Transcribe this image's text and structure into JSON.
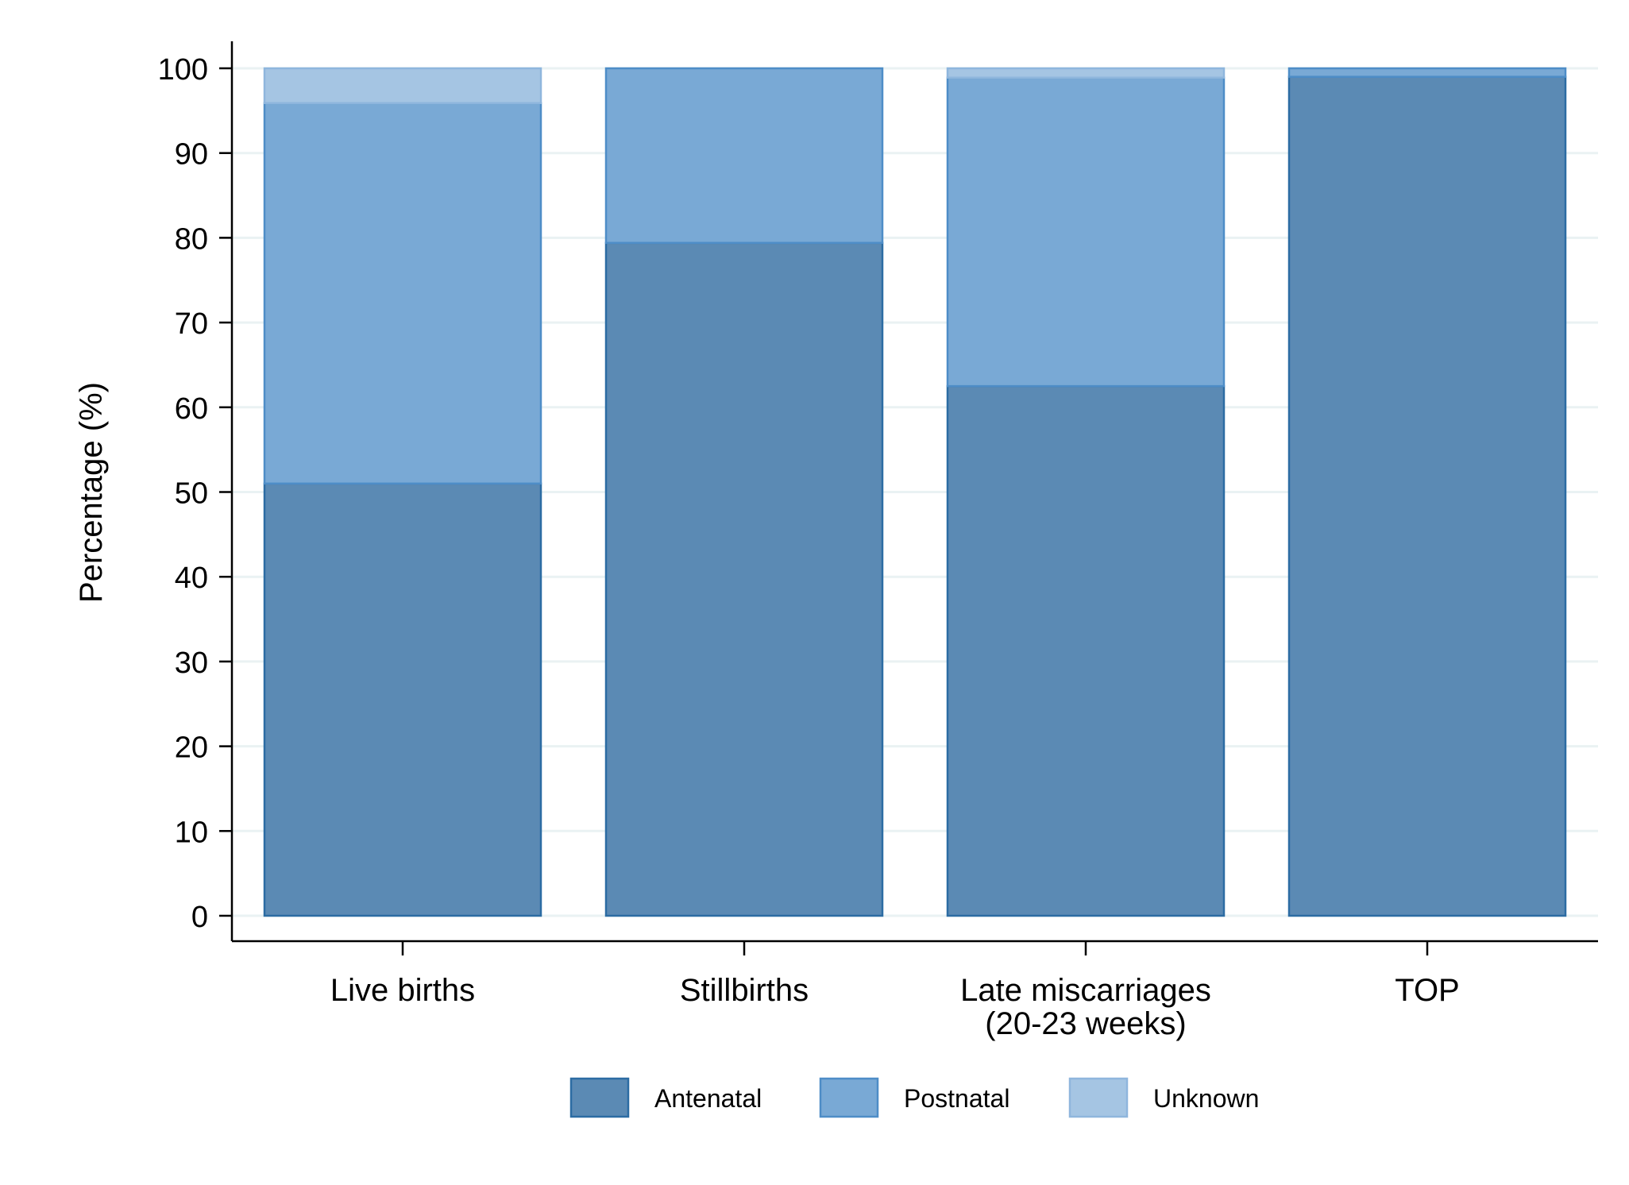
{
  "chart_data": {
    "type": "bar",
    "stacked": true,
    "title": "",
    "xlabel": "",
    "ylabel": "Percentage (%)",
    "ylim": [
      0,
      100
    ],
    "yticks": [
      0,
      10,
      20,
      30,
      40,
      50,
      60,
      70,
      80,
      90,
      100
    ],
    "grid": true,
    "legend_position": "bottom",
    "categories": [
      [
        "Live births"
      ],
      [
        "Stillbirths"
      ],
      [
        "Late miscarriages",
        "(20-23 weeks)"
      ],
      [
        "TOP"
      ]
    ],
    "series": [
      {
        "name": "Antenatal",
        "color": "#5b8ab4",
        "values": [
          51,
          79.4,
          62.5,
          99
        ]
      },
      {
        "name": "Postnatal",
        "color": "#79a9d5",
        "values": [
          44.9,
          20.6,
          36.4,
          1
        ]
      },
      {
        "name": "Unknown",
        "color": "#a5c5e3",
        "values": [
          4.1,
          0,
          1.1,
          0
        ]
      }
    ],
    "edge_colors": [
      "#2c6ca3",
      "#4e8dc7",
      "#8fb6dd"
    ]
  }
}
